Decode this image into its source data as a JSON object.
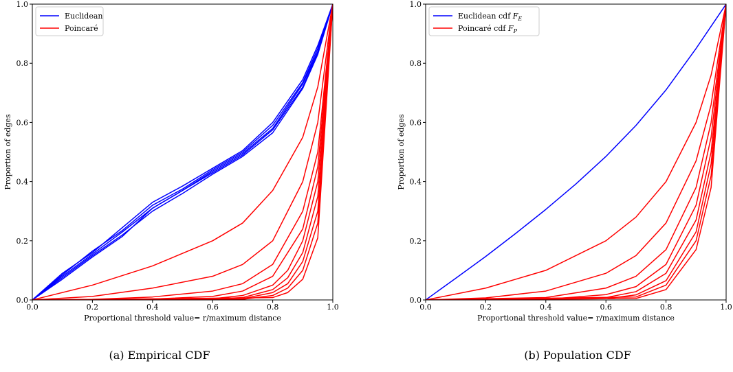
{
  "captions": {
    "a": "(a) Empirical CDF",
    "b": "(b) Population CDF"
  },
  "colors": {
    "euclidean": "#0000ff",
    "poincare": "#ff0000"
  },
  "chart_data": [
    {
      "type": "line",
      "xlabel": "Proportional threshold value= r/maximum distance",
      "ylabel": "Proportion of edges",
      "xlim": [
        0.0,
        1.0
      ],
      "ylim": [
        0.0,
        1.0
      ],
      "xticks": [
        "0.0",
        "0.2",
        "0.4",
        "0.6",
        "0.8",
        "1.0"
      ],
      "yticks": [
        "0.0",
        "0.2",
        "0.4",
        "0.6",
        "0.8",
        "1.0"
      ],
      "grid": false,
      "legend": {
        "placement": "top-left",
        "entries": [
          {
            "label": "Euclidean",
            "color": "#0000ff"
          },
          {
            "label": "Poincaré",
            "color": "#ff0000"
          }
        ]
      },
      "series": [
        {
          "name": "Euclidean",
          "color": "#0000ff",
          "x": [
            0.0,
            0.1,
            0.2,
            0.3,
            0.4,
            0.5,
            0.6,
            0.7,
            0.8,
            0.9,
            0.95,
            1.0
          ],
          "y": [
            0.0,
            0.08,
            0.155,
            0.23,
            0.31,
            0.37,
            0.435,
            0.495,
            0.58,
            0.73,
            0.84,
            1.0
          ]
        },
        {
          "name": "Euclidean",
          "color": "#0000ff",
          "x": [
            0.0,
            0.1,
            0.2,
            0.3,
            0.4,
            0.5,
            0.6,
            0.7,
            0.8,
            0.9,
            0.95,
            1.0
          ],
          "y": [
            0.0,
            0.09,
            0.16,
            0.245,
            0.33,
            0.385,
            0.445,
            0.505,
            0.6,
            0.745,
            0.86,
            1.0
          ]
        },
        {
          "name": "Euclidean",
          "color": "#0000ff",
          "x": [
            0.0,
            0.1,
            0.2,
            0.3,
            0.4,
            0.5,
            0.6,
            0.7,
            0.8,
            0.9,
            0.95,
            1.0
          ],
          "y": [
            0.0,
            0.075,
            0.15,
            0.22,
            0.3,
            0.36,
            0.425,
            0.485,
            0.565,
            0.715,
            0.83,
            1.0
          ]
        },
        {
          "name": "Euclidean",
          "color": "#0000ff",
          "x": [
            0.0,
            0.1,
            0.2,
            0.3,
            0.4,
            0.5,
            0.6,
            0.7,
            0.8,
            0.9,
            0.95,
            1.0
          ],
          "y": [
            0.0,
            0.085,
            0.165,
            0.235,
            0.32,
            0.375,
            0.44,
            0.5,
            0.59,
            0.735,
            0.85,
            1.0
          ]
        },
        {
          "name": "Euclidean",
          "color": "#0000ff",
          "x": [
            0.0,
            0.1,
            0.2,
            0.3,
            0.4,
            0.5,
            0.6,
            0.7,
            0.8,
            0.9,
            0.95,
            1.0
          ],
          "y": [
            0.0,
            0.07,
            0.145,
            0.215,
            0.31,
            0.37,
            0.43,
            0.49,
            0.575,
            0.72,
            0.835,
            1.0
          ]
        },
        {
          "name": "Poincaré",
          "color": "#ff0000",
          "x": [
            0.0,
            0.2,
            0.4,
            0.6,
            0.7,
            0.8,
            0.9,
            0.95,
            1.0
          ],
          "y": [
            0.0,
            0.05,
            0.115,
            0.2,
            0.26,
            0.37,
            0.55,
            0.72,
            1.0
          ]
        },
        {
          "name": "Poincaré",
          "color": "#ff0000",
          "x": [
            0.0,
            0.2,
            0.4,
            0.6,
            0.7,
            0.8,
            0.9,
            0.95,
            1.0
          ],
          "y": [
            0.0,
            0.012,
            0.04,
            0.08,
            0.12,
            0.2,
            0.4,
            0.6,
            1.0
          ]
        },
        {
          "name": "Poincaré",
          "color": "#ff0000",
          "x": [
            0.0,
            0.2,
            0.4,
            0.6,
            0.7,
            0.8,
            0.9,
            0.95,
            1.0
          ],
          "y": [
            0.0,
            0.002,
            0.01,
            0.03,
            0.055,
            0.12,
            0.3,
            0.5,
            1.0
          ]
        },
        {
          "name": "Poincaré",
          "color": "#ff0000",
          "x": [
            0.0,
            0.4,
            0.6,
            0.7,
            0.8,
            0.9,
            0.95,
            1.0
          ],
          "y": [
            0.0,
            0.003,
            0.012,
            0.03,
            0.08,
            0.24,
            0.45,
            1.0
          ]
        },
        {
          "name": "Poincaré",
          "color": "#ff0000",
          "x": [
            0.0,
            0.6,
            0.7,
            0.8,
            0.85,
            0.9,
            0.95,
            1.0
          ],
          "y": [
            0.0,
            0.004,
            0.015,
            0.05,
            0.1,
            0.2,
            0.4,
            1.0
          ]
        },
        {
          "name": "Poincaré",
          "color": "#ff0000",
          "x": [
            0.0,
            0.6,
            0.7,
            0.8,
            0.85,
            0.9,
            0.95,
            1.0
          ],
          "y": [
            0.0,
            0.002,
            0.008,
            0.035,
            0.075,
            0.16,
            0.35,
            1.0
          ]
        },
        {
          "name": "Poincaré",
          "color": "#ff0000",
          "x": [
            0.0,
            0.7,
            0.8,
            0.85,
            0.9,
            0.95,
            1.0
          ],
          "y": [
            0.0,
            0.004,
            0.025,
            0.055,
            0.13,
            0.3,
            1.0
          ]
        },
        {
          "name": "Poincaré",
          "color": "#ff0000",
          "x": [
            0.0,
            0.7,
            0.8,
            0.85,
            0.9,
            0.95,
            1.0
          ],
          "y": [
            0.0,
            0.002,
            0.015,
            0.04,
            0.1,
            0.26,
            1.0
          ]
        },
        {
          "name": "Poincaré",
          "color": "#ff0000",
          "x": [
            0.0,
            0.8,
            0.85,
            0.9,
            0.95,
            1.0
          ],
          "y": [
            0.0,
            0.008,
            0.025,
            0.07,
            0.21,
            1.0
          ]
        }
      ]
    },
    {
      "type": "line",
      "xlabel": "Proportional threshold value= r/maximum distance",
      "ylabel": "Proportion of edges",
      "xlim": [
        0.0,
        1.0
      ],
      "ylim": [
        0.0,
        1.0
      ],
      "xticks": [
        "0.0",
        "0.2",
        "0.4",
        "0.6",
        "0.8",
        "1.0"
      ],
      "yticks": [
        "0.0",
        "0.2",
        "0.4",
        "0.6",
        "0.8",
        "1.0"
      ],
      "grid": false,
      "legend": {
        "placement": "top-left",
        "entries": [
          {
            "label": "Euclidean cdf F_E",
            "color": "#0000ff"
          },
          {
            "label": "Poincaré cdf F_P",
            "color": "#ff0000"
          }
        ]
      },
      "series": [
        {
          "name": "Euclidean cdf F_E",
          "color": "#0000ff",
          "x": [
            0.0,
            0.1,
            0.2,
            0.3,
            0.4,
            0.5,
            0.6,
            0.7,
            0.8,
            0.9,
            0.95,
            1.0
          ],
          "y": [
            0.0,
            0.073,
            0.147,
            0.225,
            0.306,
            0.392,
            0.485,
            0.59,
            0.71,
            0.85,
            0.925,
            1.0
          ]
        },
        {
          "name": "Poincaré cdf F_P",
          "color": "#ff0000",
          "x": [
            0.0,
            0.2,
            0.4,
            0.6,
            0.7,
            0.8,
            0.9,
            0.95,
            1.0
          ],
          "y": [
            0.0,
            0.04,
            0.1,
            0.2,
            0.28,
            0.4,
            0.6,
            0.76,
            1.0
          ]
        },
        {
          "name": "Poincaré cdf F_P",
          "color": "#ff0000",
          "x": [
            0.0,
            0.2,
            0.4,
            0.6,
            0.7,
            0.8,
            0.9,
            0.95,
            1.0
          ],
          "y": [
            0.0,
            0.007,
            0.03,
            0.09,
            0.15,
            0.26,
            0.47,
            0.66,
            1.0
          ]
        },
        {
          "name": "Poincaré cdf F_P",
          "color": "#ff0000",
          "x": [
            0.0,
            0.4,
            0.6,
            0.7,
            0.8,
            0.9,
            0.95,
            1.0
          ],
          "y": [
            0.0,
            0.008,
            0.04,
            0.08,
            0.17,
            0.38,
            0.6,
            1.0
          ]
        },
        {
          "name": "Poincaré cdf F_P",
          "color": "#ff0000",
          "x": [
            0.0,
            0.4,
            0.6,
            0.7,
            0.8,
            0.9,
            0.95,
            1.0
          ],
          "y": [
            0.0,
            0.002,
            0.018,
            0.045,
            0.12,
            0.32,
            0.55,
            1.0
          ]
        },
        {
          "name": "Poincaré cdf F_P",
          "color": "#ff0000",
          "x": [
            0.0,
            0.6,
            0.7,
            0.8,
            0.9,
            0.95,
            1.0
          ],
          "y": [
            0.0,
            0.008,
            0.028,
            0.09,
            0.27,
            0.5,
            1.0
          ]
        },
        {
          "name": "Poincaré cdf F_P",
          "color": "#ff0000",
          "x": [
            0.0,
            0.6,
            0.7,
            0.8,
            0.9,
            0.95,
            1.0
          ],
          "y": [
            0.0,
            0.004,
            0.017,
            0.065,
            0.23,
            0.46,
            1.0
          ]
        },
        {
          "name": "Poincaré cdf F_P",
          "color": "#ff0000",
          "x": [
            0.0,
            0.7,
            0.8,
            0.9,
            0.95,
            1.0
          ],
          "y": [
            0.0,
            0.01,
            0.05,
            0.2,
            0.42,
            1.0
          ]
        },
        {
          "name": "Poincaré cdf F_P",
          "color": "#ff0000",
          "x": [
            0.0,
            0.7,
            0.8,
            0.9,
            0.95,
            1.0
          ],
          "y": [
            0.0,
            0.005,
            0.035,
            0.17,
            0.38,
            1.0
          ]
        }
      ]
    }
  ]
}
